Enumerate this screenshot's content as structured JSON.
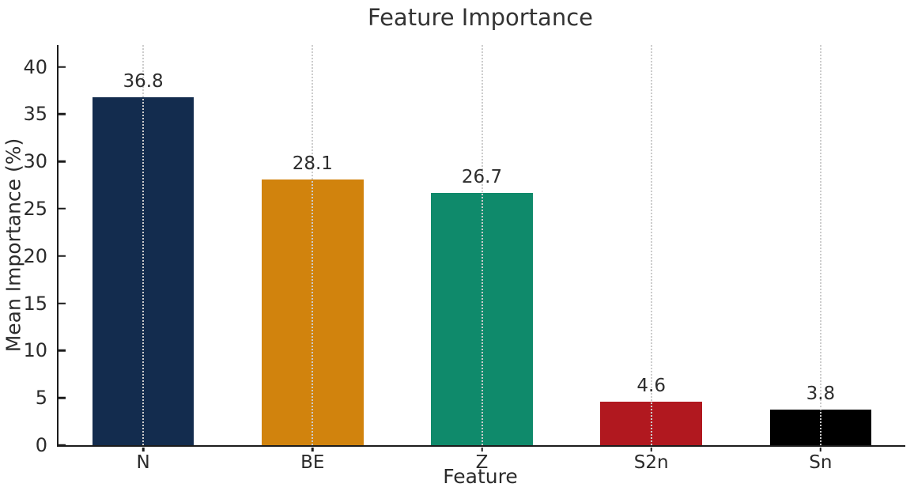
{
  "figure": {
    "background": "#ffffff",
    "text_color": "#2b2b2b",
    "axis_color": "#1c1c1c",
    "grid_color": "#cccccc"
  },
  "chart_data": {
    "type": "bar",
    "title": "Feature Importance",
    "xlabel": "Feature",
    "ylabel": "Mean Importance (%)",
    "categories": [
      "N",
      "BE",
      "Z",
      "S2n",
      "Sn"
    ],
    "values": [
      36.8,
      28.1,
      26.7,
      4.6,
      3.8
    ],
    "value_labels": [
      "36.8",
      "28.1",
      "26.7",
      "4.6",
      "3.8"
    ],
    "bar_colors": [
      "#132c4e",
      "#d1830d",
      "#0f8a6b",
      "#b1181f",
      "#000000"
    ],
    "ylim": [
      0,
      42.3
    ],
    "yticks": [
      0,
      5,
      10,
      15,
      20,
      25,
      30,
      35,
      40
    ],
    "grid": "vertical-dotted-at-bar-centers",
    "legend_position": "none",
    "bar_width_fraction": 0.6
  }
}
